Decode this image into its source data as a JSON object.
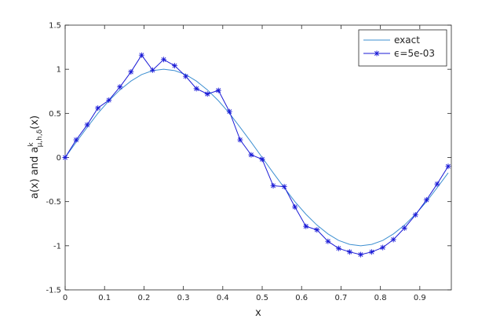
{
  "chart_data": {
    "type": "line",
    "xlabel": "x",
    "ylabel": {
      "main": "a(x) and a",
      "sup": "k",
      "sub": "μ,h,δ",
      "end": "(x)"
    },
    "x": [
      0,
      0.028,
      0.056,
      0.083,
      0.111,
      0.139,
      0.167,
      0.194,
      0.222,
      0.25,
      0.278,
      0.306,
      0.333,
      0.361,
      0.389,
      0.417,
      0.444,
      0.472,
      0.5,
      0.528,
      0.556,
      0.583,
      0.611,
      0.639,
      0.667,
      0.694,
      0.722,
      0.75,
      0.778,
      0.806,
      0.833,
      0.861,
      0.889,
      0.917,
      0.944,
      0.972
    ],
    "series": [
      {
        "name": "exact",
        "color": "#3d8fd1",
        "marker": "none",
        "values": [
          0,
          0.174,
          0.342,
          0.5,
          0.643,
          0.766,
          0.866,
          0.94,
          0.985,
          1,
          0.985,
          0.94,
          0.866,
          0.766,
          0.643,
          0.5,
          0.342,
          0.174,
          0,
          -0.174,
          -0.342,
          -0.5,
          -0.643,
          -0.766,
          -0.866,
          -0.94,
          -0.985,
          -1,
          -0.985,
          -0.94,
          -0.866,
          -0.766,
          -0.643,
          -0.5,
          -0.342,
          -0.174
        ]
      },
      {
        "name": "ϵ=5e-03",
        "color": "#1a1ad6",
        "marker": "asterisk",
        "values": [
          0,
          0.2,
          0.37,
          0.56,
          0.65,
          0.8,
          0.97,
          1.16,
          0.99,
          1.11,
          1.04,
          0.92,
          0.78,
          0.72,
          0.76,
          0.52,
          0.2,
          0.03,
          -0.02,
          -0.32,
          -0.33,
          -0.56,
          -0.78,
          -0.82,
          -0.95,
          -1.03,
          -1.07,
          -1.1,
          -1.07,
          -1.02,
          -0.93,
          -0.8,
          -0.65,
          -0.48,
          -0.3,
          -0.1
        ]
      }
    ],
    "xlim": [
      0,
      0.98
    ],
    "ylim": [
      -1.5,
      1.5
    ],
    "xticks": [
      0,
      0.1,
      0.2,
      0.3,
      0.4,
      0.5,
      0.6,
      0.7,
      0.8,
      0.9
    ],
    "yticks": [
      -1.5,
      -1,
      -0.5,
      0,
      0.5,
      1,
      1.5
    ],
    "grid": false,
    "legend": "upper right"
  }
}
